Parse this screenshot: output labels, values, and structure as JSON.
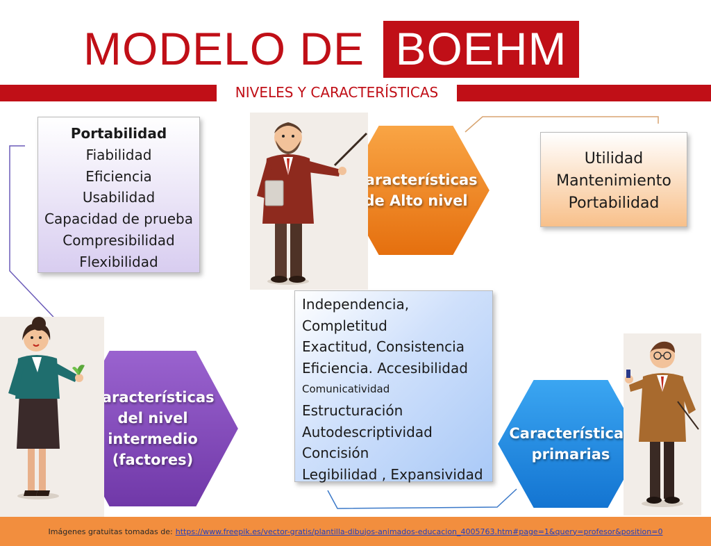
{
  "title": {
    "left": "MODELO DE",
    "highlight": "BOEHM"
  },
  "subtitle": "NIVELES Y CARACTERÍSTICAS",
  "factors_list": {
    "heading": "Portabilidad",
    "items": [
      "Fiabilidad",
      "Eficiencia",
      "Usabilidad",
      "Capacidad de prueba",
      "Compresibilidad",
      "Flexibilidad"
    ]
  },
  "high_level_list": [
    "Utilidad",
    "Mantenimiento",
    "Portabilidad"
  ],
  "primary_list": {
    "items": [
      "Independencia,",
      "Completitud",
      "Exactitud, Consistencia",
      "Eficiencia. Accesibilidad"
    ],
    "small_item": "Comunicatividad",
    "items2": [
      "Estructuración",
      "Autodescriptividad",
      "Concisión",
      "Legibilidad , Expansividad"
    ]
  },
  "hexagons": {
    "high": {
      "line1": "Características",
      "line2": "de Alto nivel"
    },
    "intermediate": {
      "line1": "Características",
      "line2": "del nivel",
      "line3": "intermedio",
      "line4": "(factores)"
    },
    "primary": {
      "line1": "Características",
      "line2": "primarias"
    }
  },
  "footer": {
    "text": "Imágenes gratuitas tomadas de:",
    "link": "https://www.freepik.es/vector-gratis/plantilla-dibujos-animados-educacion_4005763.htm#page=1&query=profesor&position=0"
  },
  "colors": {
    "brand_red": "#c00f17",
    "hex_orange": "#f07d1a",
    "hex_purple": "#8a4fc0",
    "hex_blue": "#1f8ee6",
    "footer_orange": "#f28e3e"
  },
  "icons": [
    "teacher-man-beard",
    "teacher-woman-plant",
    "teacher-man-glasses"
  ]
}
